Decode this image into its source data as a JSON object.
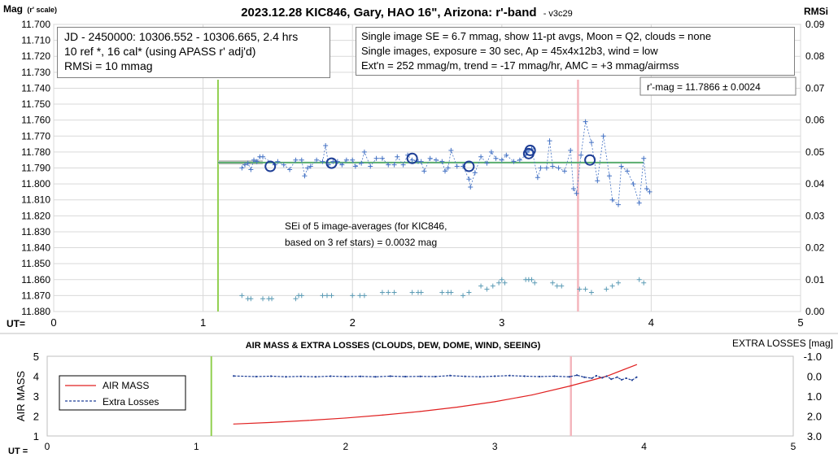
{
  "chart_data": [
    {
      "type": "scatter",
      "title": "2023.12.28 KIC846, Gary, HAO 16\", Arizona: r'-band",
      "version": "- v3c29",
      "ylabel": "Mag",
      "ylabel_sub": "(r' scale)",
      "y2label": "RMSi",
      "xlabel": "UT=",
      "xlim": [
        0,
        5
      ],
      "ylim": [
        11.7,
        11.88
      ],
      "y_reversed": true,
      "y2lim": [
        0.0,
        0.09
      ],
      "x_ticks": [
        "0",
        "1",
        "2",
        "3",
        "4",
        "5"
      ],
      "y_ticks": [
        "11.700",
        "11.710",
        "11.720",
        "11.730",
        "11.740",
        "11.750",
        "11.760",
        "11.770",
        "11.780",
        "11.790",
        "11.800",
        "11.810",
        "11.820",
        "11.830",
        "11.840",
        "11.850",
        "11.860",
        "11.870",
        "11.880"
      ],
      "y2_ticks": [
        "0.09",
        "0.08",
        "0.07",
        "0.06",
        "0.05",
        "0.04",
        "0.03",
        "0.02",
        "0.01",
        "0.00"
      ],
      "grid": true,
      "info_left": [
        "JD - 2450000: 10306.552 - 10306.665, 2.4 hrs",
        "10 ref *, 16 cal* (using APASS r' adj'd)",
        "RMSi = 10 mmag"
      ],
      "info_right": [
        "Single image SE = 6.7 mmag, show  11-pt avgs, Moon = Q2, clouds = none",
        "Single images, exposure = 30 sec, Ap = 45x4x12b3, wind = low",
        "Ext'n = 252 mmag/m, trend = -17  mmag/hr, AMC = +3 mmag/airmss"
      ],
      "result_box": "r'-mag = 11.7866 ± 0.0024",
      "annotation": [
        "SEi of 5 image-averages (for KIC846,",
        "based on 3 ref stars) = 0.0032 mag"
      ],
      "vline_start": 1.1,
      "vline_end": 3.51,
      "colors": {
        "data": "#4472c4",
        "avg": "#1f3f96",
        "fit": "#5aad6e",
        "rms": "#5b9bb5",
        "start": "#92d050",
        "end": "#f4b6bd"
      },
      "fit_line": {
        "x": [
          1.1,
          3.95
        ],
        "y": [
          11.7866,
          11.7866
        ]
      },
      "model_line": {
        "x": [
          1.1,
          1.4
        ],
        "y": [
          11.7865,
          11.7865
        ]
      },
      "series": [
        {
          "values": [
            [
              1.26,
              11.79
            ],
            [
              1.28,
              11.788
            ],
            [
              1.3,
              11.787
            ],
            [
              1.32,
              11.791
            ],
            [
              1.34,
              11.785
            ],
            [
              1.36,
              11.786
            ],
            [
              1.38,
              11.783
            ],
            [
              1.4,
              11.783
            ],
            [
              1.48,
              11.788
            ],
            [
              1.5,
              11.786
            ],
            [
              1.54,
              11.788
            ],
            [
              1.58,
              11.791
            ],
            [
              1.62,
              11.785
            ],
            [
              1.66,
              11.785
            ],
            [
              1.68,
              11.795
            ],
            [
              1.7,
              11.79
            ],
            [
              1.72,
              11.789
            ],
            [
              1.76,
              11.785
            ],
            [
              1.8,
              11.786
            ],
            [
              1.82,
              11.776
            ],
            [
              1.84,
              11.788
            ],
            [
              1.87,
              11.786
            ],
            [
              1.9,
              11.786
            ],
            [
              1.93,
              11.788
            ],
            [
              1.96,
              11.785
            ],
            [
              2.0,
              11.785
            ],
            [
              2.02,
              11.789
            ],
            [
              2.06,
              11.787
            ],
            [
              2.08,
              11.78
            ],
            [
              2.12,
              11.789
            ],
            [
              2.16,
              11.784
            ],
            [
              2.2,
              11.784
            ],
            [
              2.24,
              11.788
            ],
            [
              2.28,
              11.788
            ],
            [
              2.3,
              11.783
            ],
            [
              2.34,
              11.788
            ],
            [
              2.37,
              11.782
            ],
            [
              2.4,
              11.785
            ],
            [
              2.44,
              11.786
            ],
            [
              2.46,
              11.786
            ],
            [
              2.48,
              11.792
            ],
            [
              2.52,
              11.784
            ],
            [
              2.56,
              11.785
            ],
            [
              2.6,
              11.786
            ],
            [
              2.62,
              11.792
            ],
            [
              2.64,
              11.79
            ],
            [
              2.66,
              11.779
            ],
            [
              2.7,
              11.789
            ],
            [
              2.74,
              11.789
            ],
            [
              2.78,
              11.797
            ],
            [
              2.79,
              11.802
            ],
            [
              2.82,
              11.793
            ],
            [
              2.86,
              11.783
            ],
            [
              2.9,
              11.787
            ],
            [
              2.93,
              11.78
            ],
            [
              2.96,
              11.784
            ],
            [
              3.0,
              11.785
            ],
            [
              3.03,
              11.782
            ],
            [
              3.08,
              11.786
            ],
            [
              3.12,
              11.785
            ],
            [
              3.16,
              11.782
            ],
            [
              3.17,
              11.78
            ],
            [
              3.18,
              11.779
            ],
            [
              3.2,
              11.778
            ],
            [
              3.24,
              11.796
            ],
            [
              3.26,
              11.79
            ],
            [
              3.3,
              11.79
            ],
            [
              3.32,
              11.773
            ],
            [
              3.34,
              11.789
            ],
            [
              3.38,
              11.79
            ],
            [
              3.42,
              11.792
            ],
            [
              3.46,
              11.779
            ],
            [
              3.48,
              11.803
            ],
            [
              3.5,
              11.806
            ],
            [
              3.53,
              11.782
            ],
            [
              3.56,
              11.761
            ],
            [
              3.6,
              11.774
            ],
            [
              3.64,
              11.798
            ],
            [
              3.68,
              11.77
            ],
            [
              3.72,
              11.795
            ],
            [
              3.74,
              11.81
            ],
            [
              3.78,
              11.813
            ],
            [
              3.8,
              11.789
            ],
            [
              3.84,
              11.792
            ],
            [
              3.88,
              11.8
            ],
            [
              3.92,
              11.812
            ],
            [
              3.95,
              11.784
            ],
            [
              3.97,
              11.803
            ],
            [
              3.99,
              11.805
            ]
          ]
        },
        {
          "values": [
            [
              1.45,
              11.789
            ],
            [
              1.86,
              11.787
            ],
            [
              2.4,
              11.784
            ],
            [
              2.78,
              11.789
            ],
            [
              3.18,
              11.781
            ],
            [
              3.19,
              11.779
            ],
            [
              3.59,
              11.785
            ]
          ]
        },
        {
          "values": [
            [
              1.26,
              0.005
            ],
            [
              1.3,
              0.004
            ],
            [
              1.32,
              0.004
            ],
            [
              1.4,
              0.004
            ],
            [
              1.44,
              0.004
            ],
            [
              1.46,
              0.004
            ],
            [
              1.62,
              0.004
            ],
            [
              1.64,
              0.005
            ],
            [
              1.66,
              0.005
            ],
            [
              1.8,
              0.005
            ],
            [
              1.83,
              0.005
            ],
            [
              1.86,
              0.005
            ],
            [
              2.0,
              0.005
            ],
            [
              2.05,
              0.005
            ],
            [
              2.08,
              0.005
            ],
            [
              2.2,
              0.006
            ],
            [
              2.24,
              0.006
            ],
            [
              2.28,
              0.006
            ],
            [
              2.4,
              0.006
            ],
            [
              2.44,
              0.006
            ],
            [
              2.46,
              0.006
            ],
            [
              2.6,
              0.006
            ],
            [
              2.64,
              0.006
            ],
            [
              2.66,
              0.006
            ],
            [
              2.74,
              0.005
            ],
            [
              2.78,
              0.006
            ],
            [
              2.86,
              0.008
            ],
            [
              2.9,
              0.007
            ],
            [
              2.94,
              0.008
            ],
            [
              2.98,
              0.009
            ],
            [
              3.0,
              0.01
            ],
            [
              3.02,
              0.009
            ],
            [
              3.16,
              0.01
            ],
            [
              3.18,
              0.01
            ],
            [
              3.2,
              0.01
            ],
            [
              3.22,
              0.009
            ],
            [
              3.34,
              0.009
            ],
            [
              3.37,
              0.008
            ],
            [
              3.4,
              0.008
            ],
            [
              3.52,
              0.007
            ],
            [
              3.56,
              0.007
            ],
            [
              3.6,
              0.006
            ],
            [
              3.7,
              0.007
            ],
            [
              3.74,
              0.008
            ],
            [
              3.78,
              0.009
            ],
            [
              3.92,
              0.01
            ],
            [
              3.95,
              0.009
            ]
          ]
        }
      ]
    },
    {
      "type": "line",
      "title": "AIR MASS & EXTRA LOSSES (CLOUDS, DEW, DOME, WIND, SEEING)",
      "ylabel": "AIR MASS",
      "y2label": "EXTRA LOSSES [mag]",
      "xlabel": "UT =",
      "xlim": [
        0,
        5
      ],
      "ylim": [
        1,
        5
      ],
      "y2lim": [
        -1.0,
        3.0
      ],
      "y2_reversed": true,
      "x_ticks": [
        "0",
        "1",
        "2",
        "3",
        "4",
        "5"
      ],
      "y_ticks": [
        "5",
        "4",
        "3",
        "2",
        "1"
      ],
      "y2_ticks": [
        "-1.0",
        "0.0",
        "1.0",
        "2.0",
        "3.0"
      ],
      "grid": false,
      "legend": [
        "AIR MASS",
        "Extra Losses"
      ],
      "vline_start": 1.1,
      "vline_end": 3.51,
      "colors": {
        "airmass": "#e02020",
        "losses": "#1f3f96",
        "start": "#92d050",
        "end": "#f4b6bd"
      },
      "series": [
        {
          "values": [
            [
              1.25,
              1.6
            ],
            [
              1.5,
              1.68
            ],
            [
              1.75,
              1.78
            ],
            [
              2.0,
              1.9
            ],
            [
              2.25,
              2.05
            ],
            [
              2.5,
              2.23
            ],
            [
              2.75,
              2.45
            ],
            [
              3.0,
              2.72
            ],
            [
              3.25,
              3.06
            ],
            [
              3.5,
              3.5
            ],
            [
              3.75,
              4.0
            ],
            [
              3.95,
              4.58
            ]
          ]
        },
        {
          "values": [
            [
              1.25,
              -0.01
            ],
            [
              1.4,
              0.02
            ],
            [
              1.5,
              0.0
            ],
            [
              1.6,
              0.03
            ],
            [
              1.7,
              0.01
            ],
            [
              1.8,
              0.03
            ],
            [
              1.9,
              0.0
            ],
            [
              2.0,
              0.02
            ],
            [
              2.1,
              0.01
            ],
            [
              2.2,
              0.03
            ],
            [
              2.3,
              0.0
            ],
            [
              2.4,
              0.02
            ],
            [
              2.5,
              0.01
            ],
            [
              2.6,
              0.02
            ],
            [
              2.7,
              -0.03
            ],
            [
              2.8,
              0.01
            ],
            [
              2.9,
              0.03
            ],
            [
              3.0,
              0.0
            ],
            [
              3.1,
              -0.03
            ],
            [
              3.2,
              0.0
            ],
            [
              3.3,
              0.02
            ],
            [
              3.4,
              0.0
            ],
            [
              3.5,
              0.03
            ],
            [
              3.55,
              -0.05
            ],
            [
              3.6,
              0.05
            ],
            [
              3.65,
              0.1
            ],
            [
              3.68,
              -0.02
            ],
            [
              3.72,
              0.08
            ],
            [
              3.75,
              0.0
            ],
            [
              3.78,
              0.15
            ],
            [
              3.82,
              0.05
            ],
            [
              3.85,
              0.18
            ],
            [
              3.88,
              0.1
            ],
            [
              3.92,
              0.2
            ],
            [
              3.95,
              0.05
            ]
          ]
        }
      ]
    }
  ]
}
